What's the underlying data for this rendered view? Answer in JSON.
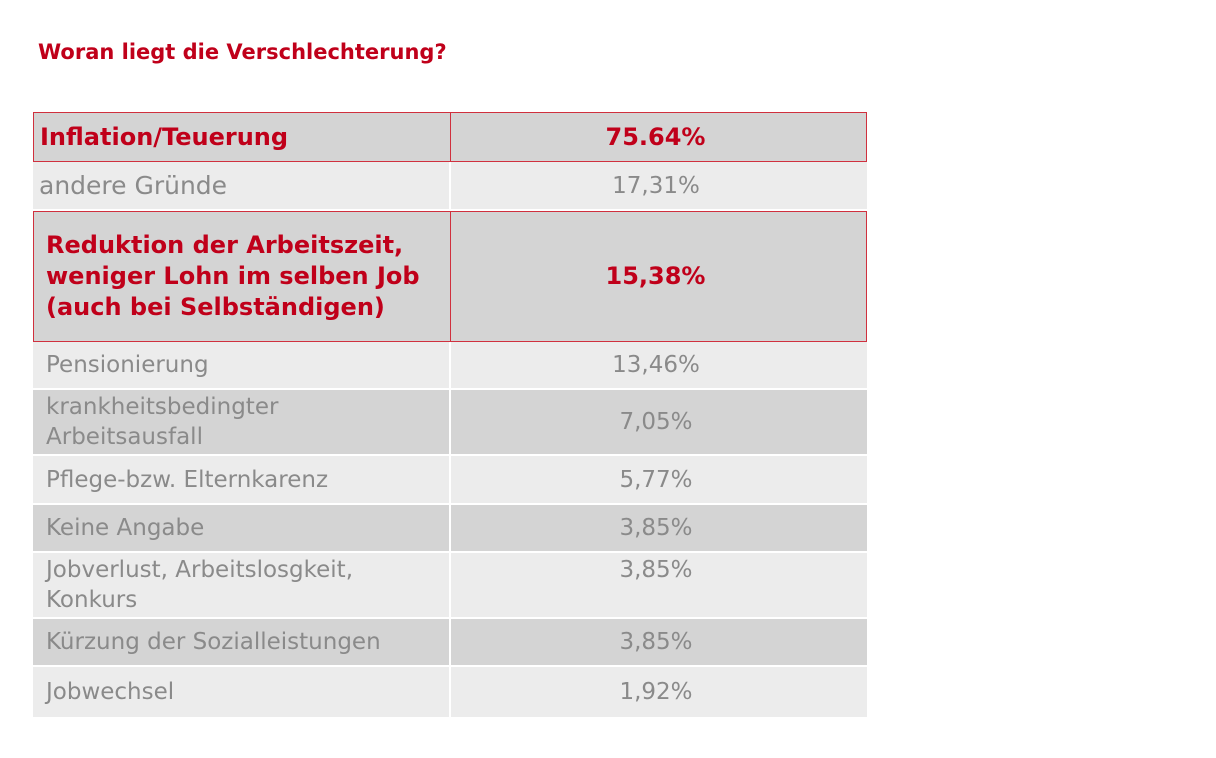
{
  "title": "Woran liegt die Verschlechterung?",
  "table": {
    "rows": [
      {
        "reason": "Inflation/Teuerung",
        "value": "75.64%"
      },
      {
        "reason": "andere Gründe",
        "value": "17,31%"
      },
      {
        "reason": "Reduktion der Arbeitszeit, weniger Lohn im selben Job (auch bei Selbständigen)",
        "value": "15,38%"
      },
      {
        "reason": "Pensionierung",
        "value": "13,46%"
      },
      {
        "reason": "krankheitsbedingter Arbeitsausfall",
        "value": "7,05%"
      },
      {
        "reason": "Pflege-bzw. Elternkarenz",
        "value": "5,77%"
      },
      {
        "reason": "Keine Angabe",
        "value": "3,85%"
      },
      {
        "reason": "Jobverlust, Arbeitslosgkeit, Konkurs",
        "value": "3,85%"
      },
      {
        "reason": "Kürzung der Sozialleistungen",
        "value": "3,85%"
      },
      {
        "reason": "Jobwechsel",
        "value": "1,92%"
      }
    ]
  },
  "colors": {
    "accent": "#c0001a",
    "row_light": "#ececec",
    "row_dark": "#d4d4d4",
    "text_gray": "#8a8a8a"
  }
}
